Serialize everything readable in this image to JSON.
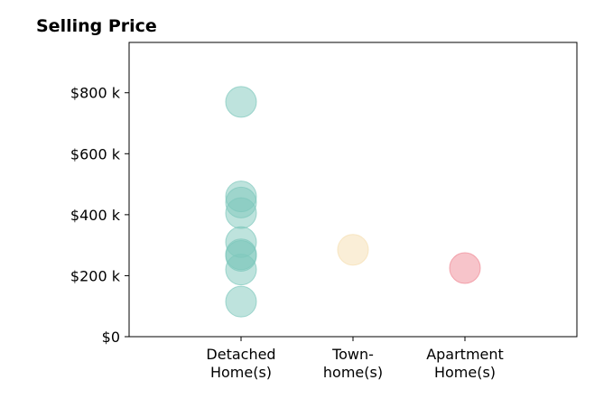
{
  "chart_data": {
    "type": "scatter",
    "title": "Selling Price",
    "xlabel": "",
    "ylabel": "",
    "categories": [
      {
        "lines": [
          "Detached",
          "Home(s)"
        ]
      },
      {
        "lines": [
          "Town-",
          "home(s)"
        ]
      },
      {
        "lines": [
          "Apartment",
          "Home(s)"
        ]
      }
    ],
    "y_ticks": [
      {
        "value": 0,
        "label": "$0"
      },
      {
        "value": 200000,
        "label": "$200 k"
      },
      {
        "value": 400000,
        "label": "$400 k"
      },
      {
        "value": 600000,
        "label": "$600 k"
      },
      {
        "value": 800000,
        "label": "$800 k"
      }
    ],
    "ylim": [
      0,
      965000
    ],
    "xlim": [
      -1,
      3
    ],
    "grid": false,
    "legend": "none",
    "series": [
      {
        "category_index": 0,
        "color": "#7ec8bc",
        "values": [
          770000,
          460000,
          440000,
          405000,
          310000,
          270000,
          265000,
          220000,
          115000
        ]
      },
      {
        "category_index": 1,
        "color": "#f5deb0",
        "values": [
          285000
        ]
      },
      {
        "category_index": 2,
        "color": "#f08a95",
        "values": [
          225000
        ]
      }
    ]
  }
}
